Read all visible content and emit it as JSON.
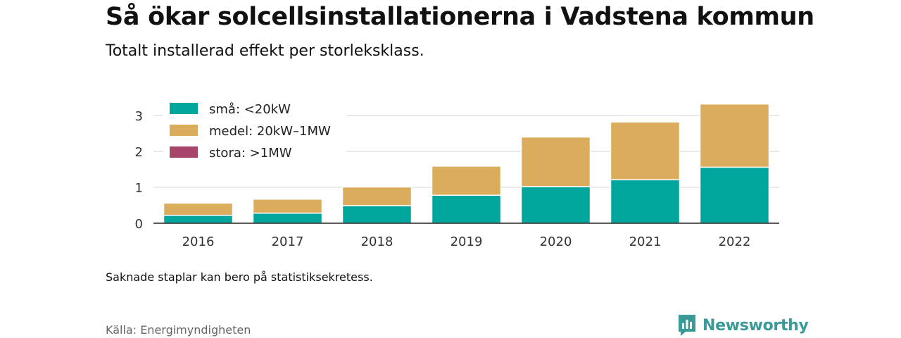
{
  "title": "Så ökar solcellsinstallationerna i Vadstena kommun",
  "subtitle": "Totalt installerad effekt per storleksklass.",
  "note": "Saknade staplar kan bero på statistiksekretess.",
  "source": "Källa: Energimyndigheten",
  "brand": {
    "name": "Newsworthy",
    "icon": "newsworthy-logo-icon",
    "color": "#3a9a98"
  },
  "chart_data": {
    "type": "bar",
    "stacked": true,
    "title": "",
    "xlabel": "",
    "ylabel": "",
    "categories": [
      "2016",
      "2017",
      "2018",
      "2019",
      "2020",
      "2021",
      "2022"
    ],
    "series": [
      {
        "name": "små: <20kW",
        "color": "#00a59b",
        "values": [
          0.22,
          0.28,
          0.49,
          0.78,
          1.02,
          1.21,
          1.56
        ]
      },
      {
        "name": "medel: 20kW–1MW",
        "color": "#dbac5b",
        "values": [
          0.34,
          0.39,
          0.52,
          0.81,
          1.38,
          1.61,
          1.76
        ]
      },
      {
        "name": "stora: >1MW",
        "color": "#a7466a",
        "values": [
          0,
          0,
          0,
          0,
          0,
          0,
          0
        ]
      }
    ],
    "yticks": [
      0,
      1,
      2,
      3
    ],
    "ylim": [
      0,
      3.4
    ],
    "grid": true,
    "legend": "top-left"
  }
}
